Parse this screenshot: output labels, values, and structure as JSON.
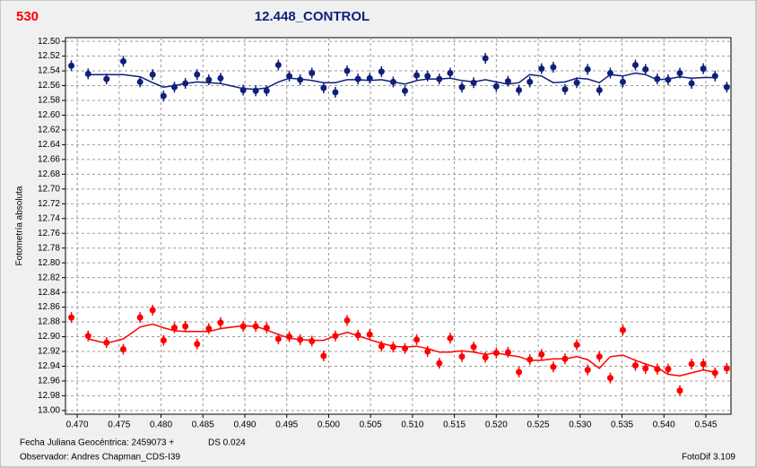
{
  "chart_data": {
    "type": "scatter",
    "id_label": "530",
    "title": "12.448_CONTROL",
    "ylabel": "Fotometría absoluta",
    "xlabel": "Fecha Juliana Geocéntrica: 2459073 +",
    "annotations": [
      "DS 0.024",
      "Observador: Andres Chapman_CDS-I39",
      "FotoDif 3.109"
    ],
    "y_inverted": true,
    "grid": true,
    "xlim": [
      0.4686,
      0.548
    ],
    "ylim": [
      12.495,
      13.005
    ],
    "xticks": [
      {
        "value": 0.47,
        "label": "0.470"
      },
      0.475,
      {
        "value": 0.48,
        "label": "0.480"
      },
      0.485,
      {
        "value": 0.49,
        "label": "0.490"
      },
      0.495,
      {
        "value": 0.5,
        "label": "0.500"
      },
      0.505,
      {
        "value": 0.51,
        "label": "0.510"
      },
      0.515,
      {
        "value": 0.52,
        "label": "0.520"
      },
      0.525,
      {
        "value": 0.53,
        "label": "0.530"
      },
      0.535,
      {
        "value": 0.54,
        "label": "0.540"
      },
      0.545
    ],
    "yticks": [
      {
        "value": 12.5,
        "label": "12.50"
      },
      12.52,
      12.54,
      12.56,
      12.58,
      {
        "value": 12.6,
        "label": "12.60"
      },
      12.62,
      12.64,
      12.66,
      12.68,
      {
        "value": 12.7,
        "label": "12.70"
      },
      12.72,
      12.74,
      12.76,
      12.78,
      {
        "value": 12.8,
        "label": "12.80"
      },
      12.82,
      12.84,
      12.86,
      12.88,
      {
        "value": 12.9,
        "label": "12.90"
      },
      12.92,
      12.94,
      12.96,
      12.98,
      {
        "value": 13,
        "label": "13.00"
      }
    ],
    "x": [
      0.4693,
      0.4713,
      0.4735,
      0.4755,
      0.4775,
      0.479,
      0.4803,
      0.4816,
      0.4829,
      0.4843,
      0.4857,
      0.4871,
      0.4898,
      0.4913,
      0.4926,
      0.494,
      0.4953,
      0.4966,
      0.498,
      0.4994,
      0.5008,
      0.5022,
      0.5035,
      0.5049,
      0.5063,
      0.5077,
      0.5091,
      0.5105,
      0.5118,
      0.5132,
      0.5145,
      0.5159,
      0.5173,
      0.5187,
      0.52,
      0.5214,
      0.5227,
      0.524,
      0.5254,
      0.5268,
      0.5282,
      0.5296,
      0.5309,
      0.5323,
      0.5336,
      0.5351,
      0.5366,
      0.5378,
      0.5392,
      0.5405,
      0.5419,
      0.5433,
      0.5447,
      0.5461,
      0.5475
    ],
    "series": [
      {
        "color": "#0f1f7a",
        "values": [
          12.533,
          12.544,
          12.551,
          12.527,
          12.555,
          12.545,
          12.574,
          12.562,
          12.557,
          12.545,
          12.552,
          12.55,
          12.566,
          12.567,
          12.567,
          12.532,
          12.547,
          12.552,
          12.543,
          12.563,
          12.569,
          12.54,
          12.551,
          12.55,
          12.541,
          12.555,
          12.567,
          12.546,
          12.547,
          12.551,
          12.543,
          12.562,
          12.556,
          12.523,
          12.561,
          12.554,
          12.566,
          12.555,
          12.537,
          12.535,
          12.565,
          12.556,
          12.538,
          12.566,
          12.543,
          12.555,
          12.532,
          12.538,
          12.551,
          12.552,
          12.543,
          12.557,
          12.537,
          12.547,
          12.562
        ],
        "trend": [
          null,
          12.545,
          12.545,
          12.545,
          12.548,
          12.556,
          12.562,
          12.56,
          12.557,
          12.555,
          12.556,
          12.557,
          12.564,
          12.565,
          12.563,
          12.555,
          12.55,
          12.551,
          12.553,
          12.556,
          12.556,
          12.552,
          12.552,
          12.553,
          12.552,
          12.555,
          12.558,
          12.553,
          12.551,
          12.551,
          12.55,
          12.553,
          12.555,
          12.552,
          12.555,
          12.558,
          12.556,
          12.545,
          12.547,
          12.556,
          12.555,
          12.55,
          12.551,
          12.556,
          12.545,
          12.547,
          12.543,
          12.545,
          12.552,
          12.551,
          12.548,
          12.55,
          12.549,
          12.549,
          null
        ]
      },
      {
        "color": "#ff0000",
        "values": [
          12.874,
          12.899,
          12.908,
          12.917,
          12.874,
          12.864,
          12.905,
          12.888,
          12.886,
          12.91,
          12.889,
          12.881,
          12.886,
          12.886,
          12.888,
          12.903,
          12.9,
          12.904,
          12.906,
          12.926,
          12.899,
          12.878,
          12.898,
          12.897,
          12.913,
          12.914,
          12.916,
          12.904,
          12.92,
          12.936,
          12.902,
          12.927,
          12.914,
          12.928,
          12.922,
          12.921,
          12.948,
          12.931,
          12.924,
          12.941,
          12.93,
          12.911,
          12.945,
          12.927,
          12.956,
          12.891,
          12.939,
          12.943,
          12.944,
          12.944,
          12.973,
          12.937,
          12.937,
          12.949,
          12.943
        ],
        "trend": [
          null,
          12.903,
          12.909,
          12.903,
          12.887,
          12.883,
          12.888,
          12.892,
          12.893,
          12.893,
          12.893,
          12.889,
          12.885,
          12.886,
          12.891,
          12.897,
          12.902,
          12.904,
          12.905,
          12.905,
          12.899,
          12.894,
          12.899,
          12.904,
          12.909,
          12.913,
          12.914,
          12.913,
          12.916,
          12.921,
          12.921,
          12.919,
          12.921,
          12.924,
          12.922,
          12.925,
          12.927,
          12.932,
          12.932,
          12.93,
          12.93,
          12.927,
          12.931,
          12.943,
          12.927,
          12.925,
          12.932,
          12.937,
          12.942,
          12.951,
          12.953,
          12.949,
          12.945,
          12.948,
          null
        ]
      }
    ]
  }
}
